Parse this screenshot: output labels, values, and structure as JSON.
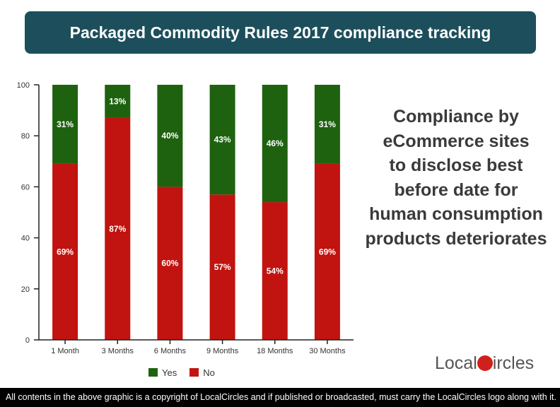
{
  "title": "Packaged Commodity Rules 2017 compliance tracking",
  "side_text": [
    "Compliance by",
    "eCommerce sites",
    "to disclose best",
    "before date for",
    "human consumption",
    "products deteriorates"
  ],
  "logo": {
    "part1": "Local",
    "part2": "ircles"
  },
  "footer": "All contents in the above graphic is a copyright of LocalCircles and if published or broadcasted, must carry the LocalCircles logo along with it.",
  "colors": {
    "yes": "#1e6210",
    "no": "#c1130f",
    "banner": "#1c4f5b"
  },
  "chart_data": {
    "type": "bar",
    "stacked": true,
    "categories": [
      "1 Month",
      "3 Months",
      "6 Months",
      "9 Months",
      "18 Months",
      "30 Months"
    ],
    "series": [
      {
        "name": "No",
        "values": [
          69,
          87,
          60,
          57,
          54,
          69
        ],
        "labels": [
          "69%",
          "87%",
          "60%",
          "57%",
          "54%",
          "69%"
        ]
      },
      {
        "name": "Yes",
        "values": [
          31,
          13,
          40,
          43,
          46,
          31
        ],
        "labels": [
          "31%",
          "13%",
          "40%",
          "43%",
          "46%",
          "31%"
        ]
      }
    ],
    "ylim": [
      0,
      100
    ],
    "yticks": [
      0,
      20,
      40,
      60,
      80,
      100
    ],
    "grid": false,
    "legend": "bottom"
  }
}
